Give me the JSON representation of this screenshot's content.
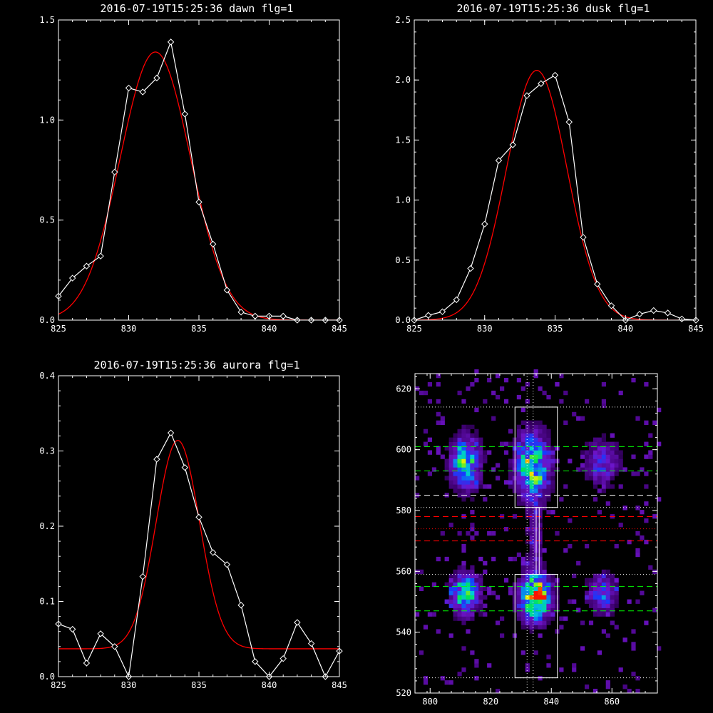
{
  "colors": {
    "background": "#000000",
    "axes": "#ffffff",
    "observed": "#ffffff",
    "fit": "#ff0000",
    "green_guides": "#00ff00",
    "white_guides": "#ffffff",
    "red_guides": "#ff0000"
  },
  "chart_data": [
    {
      "id": "dawn",
      "type": "line",
      "title": "2016-07-19T15:25:36 dawn flg=1",
      "xlim": [
        825,
        845
      ],
      "ylim": [
        0,
        1.5
      ],
      "xticks": [
        825,
        830,
        835,
        840,
        845
      ],
      "yticks": [
        0.0,
        0.5,
        1.0,
        1.5
      ],
      "xtick_labels": [
        "825",
        "830",
        "835",
        "840",
        "845"
      ],
      "ytick_labels": [
        "0.0",
        "0.5",
        "1.0",
        "1.5"
      ],
      "series": [
        {
          "kind": "observed",
          "marker": "diamond",
          "x": [
            825,
            826,
            827,
            828,
            829,
            830,
            831,
            832,
            833,
            834,
            835,
            836,
            837,
            838,
            839,
            840,
            841,
            842,
            843,
            844,
            845
          ],
          "y": [
            0.12,
            0.21,
            0.27,
            0.32,
            0.74,
            1.16,
            1.14,
            1.21,
            1.39,
            1.03,
            0.59,
            0.38,
            0.15,
            0.04,
            0.02,
            0.02,
            0.02,
            0.0,
            0.0,
            0.0,
            0.0
          ]
        },
        {
          "kind": "fit",
          "model": "gaussian",
          "amplitude": 1.34,
          "center": 831.9,
          "sigma": 2.5,
          "baseline": 0.0
        }
      ]
    },
    {
      "id": "dusk",
      "type": "line",
      "title": "2016-07-19T15:25:36 dusk flg=1",
      "xlim": [
        825,
        845
      ],
      "ylim": [
        0,
        2.5
      ],
      "xticks": [
        825,
        830,
        835,
        840,
        845
      ],
      "yticks": [
        0.0,
        0.5,
        1.0,
        1.5,
        2.0,
        2.5
      ],
      "xtick_labels": [
        "825",
        "830",
        "835",
        "840",
        "845"
      ],
      "ytick_labels": [
        "0.0",
        "0.5",
        "1.0",
        "1.5",
        "2.0",
        "2.5"
      ],
      "series": [
        {
          "kind": "observed",
          "marker": "diamond",
          "x": [
            825,
            826,
            827,
            828,
            829,
            830,
            831,
            832,
            833,
            834,
            835,
            836,
            837,
            838,
            839,
            840,
            841,
            842,
            843,
            844,
            845
          ],
          "y": [
            0.0,
            0.04,
            0.07,
            0.17,
            0.43,
            0.8,
            1.33,
            1.46,
            1.87,
            1.97,
            2.04,
            1.65,
            0.69,
            0.3,
            0.12,
            0.0,
            0.05,
            0.08,
            0.06,
            0.01,
            0.0
          ]
        },
        {
          "kind": "fit",
          "model": "gaussian",
          "amplitude": 2.08,
          "center": 833.7,
          "sigma": 2.15,
          "baseline": 0.0
        }
      ]
    },
    {
      "id": "aurora",
      "type": "line",
      "title": "2016-07-19T15:25:36 aurora flg=1",
      "xlim": [
        825,
        845
      ],
      "ylim": [
        0,
        0.4
      ],
      "xticks": [
        825,
        830,
        835,
        840,
        845
      ],
      "yticks": [
        0.0,
        0.1,
        0.2,
        0.3,
        0.4
      ],
      "xtick_labels": [
        "825",
        "830",
        "835",
        "840",
        "845"
      ],
      "ytick_labels": [
        "0.0",
        "0.1",
        "0.2",
        "0.3",
        "0.4"
      ],
      "series": [
        {
          "kind": "observed",
          "marker": "diamond",
          "x": [
            825,
            826,
            827,
            828,
            829,
            830,
            831,
            832,
            833,
            834,
            835,
            836,
            837,
            838,
            839,
            840,
            841,
            842,
            843,
            844,
            845
          ],
          "y": [
            0.07,
            0.063,
            0.018,
            0.057,
            0.04,
            0.0,
            0.133,
            0.289,
            0.324,
            0.278,
            0.212,
            0.165,
            0.149,
            0.095,
            0.02,
            0.0,
            0.024,
            0.072,
            0.044,
            0.0,
            0.034
          ]
        },
        {
          "kind": "fit",
          "model": "gaussian",
          "amplitude": 0.277,
          "center": 833.5,
          "sigma": 1.55,
          "baseline": 0.037
        }
      ]
    },
    {
      "id": "image",
      "type": "heatmap",
      "title": "",
      "xlim": [
        795,
        875
      ],
      "ylim": [
        520,
        625
      ],
      "xticks": [
        800,
        820,
        840,
        860
      ],
      "yticks": [
        520,
        540,
        560,
        580,
        600,
        620
      ],
      "xtick_labels": [
        "800",
        "820",
        "840",
        "860"
      ],
      "ytick_labels": [
        "520",
        "540",
        "560",
        "580",
        "600",
        "620"
      ],
      "colormap": "rainbow",
      "blobs": [
        {
          "cx": 811,
          "cy": 595,
          "sx": 3.0,
          "sy": 5.5,
          "peak": 0.65
        },
        {
          "cx": 833,
          "cy": 594,
          "sx": 3.5,
          "sy": 7.0,
          "peak": 0.72
        },
        {
          "cx": 856,
          "cy": 595,
          "sx": 3.5,
          "sy": 5.0,
          "peak": 0.32
        },
        {
          "cx": 811,
          "cy": 552,
          "sx": 3.0,
          "sy": 4.5,
          "peak": 0.62
        },
        {
          "cx": 834,
          "cy": 551,
          "sx": 3.2,
          "sy": 5.0,
          "peak": 0.95
        },
        {
          "cx": 856,
          "cy": 552,
          "sx": 3.0,
          "sy": 4.0,
          "peak": 0.38
        },
        {
          "cx": 834,
          "cy": 570,
          "sx": 1.5,
          "sy": 9.0,
          "peak": 0.2
        }
      ],
      "boxes": [
        {
          "x0": 828,
          "x1": 842,
          "y0": 581,
          "y1": 614
        },
        {
          "x0": 828,
          "x1": 842,
          "y0": 525,
          "y1": 559
        },
        {
          "x0": 835,
          "x1": 836,
          "y0": 559,
          "y1": 581
        }
      ],
      "hlines": [
        {
          "y": 614,
          "style": "dotted",
          "color": "#ffffff"
        },
        {
          "y": 601,
          "style": "dashed",
          "color": "#00ff00"
        },
        {
          "y": 593,
          "style": "dashed",
          "color": "#00ff00"
        },
        {
          "y": 585,
          "style": "dashed",
          "color": "#ffffff"
        },
        {
          "y": 581,
          "style": "dotted",
          "color": "#ffffff"
        },
        {
          "y": 578,
          "style": "dashed",
          "color": "#ff0000"
        },
        {
          "y": 574,
          "style": "dotted",
          "color": "#ff0000"
        },
        {
          "y": 570,
          "style": "dashed",
          "color": "#ff0000"
        },
        {
          "y": 559,
          "style": "dotted",
          "color": "#ffffff"
        },
        {
          "y": 555,
          "style": "dashed",
          "color": "#00ff00"
        },
        {
          "y": 547,
          "style": "dashed",
          "color": "#00ff00"
        },
        {
          "y": 525,
          "style": "dotted",
          "color": "#ffffff"
        }
      ],
      "vlines": [
        {
          "x": 832,
          "style": "dotted",
          "color": "#ffffff"
        },
        {
          "x": 834,
          "style": "dotted",
          "color": "#ffffff"
        }
      ]
    }
  ]
}
